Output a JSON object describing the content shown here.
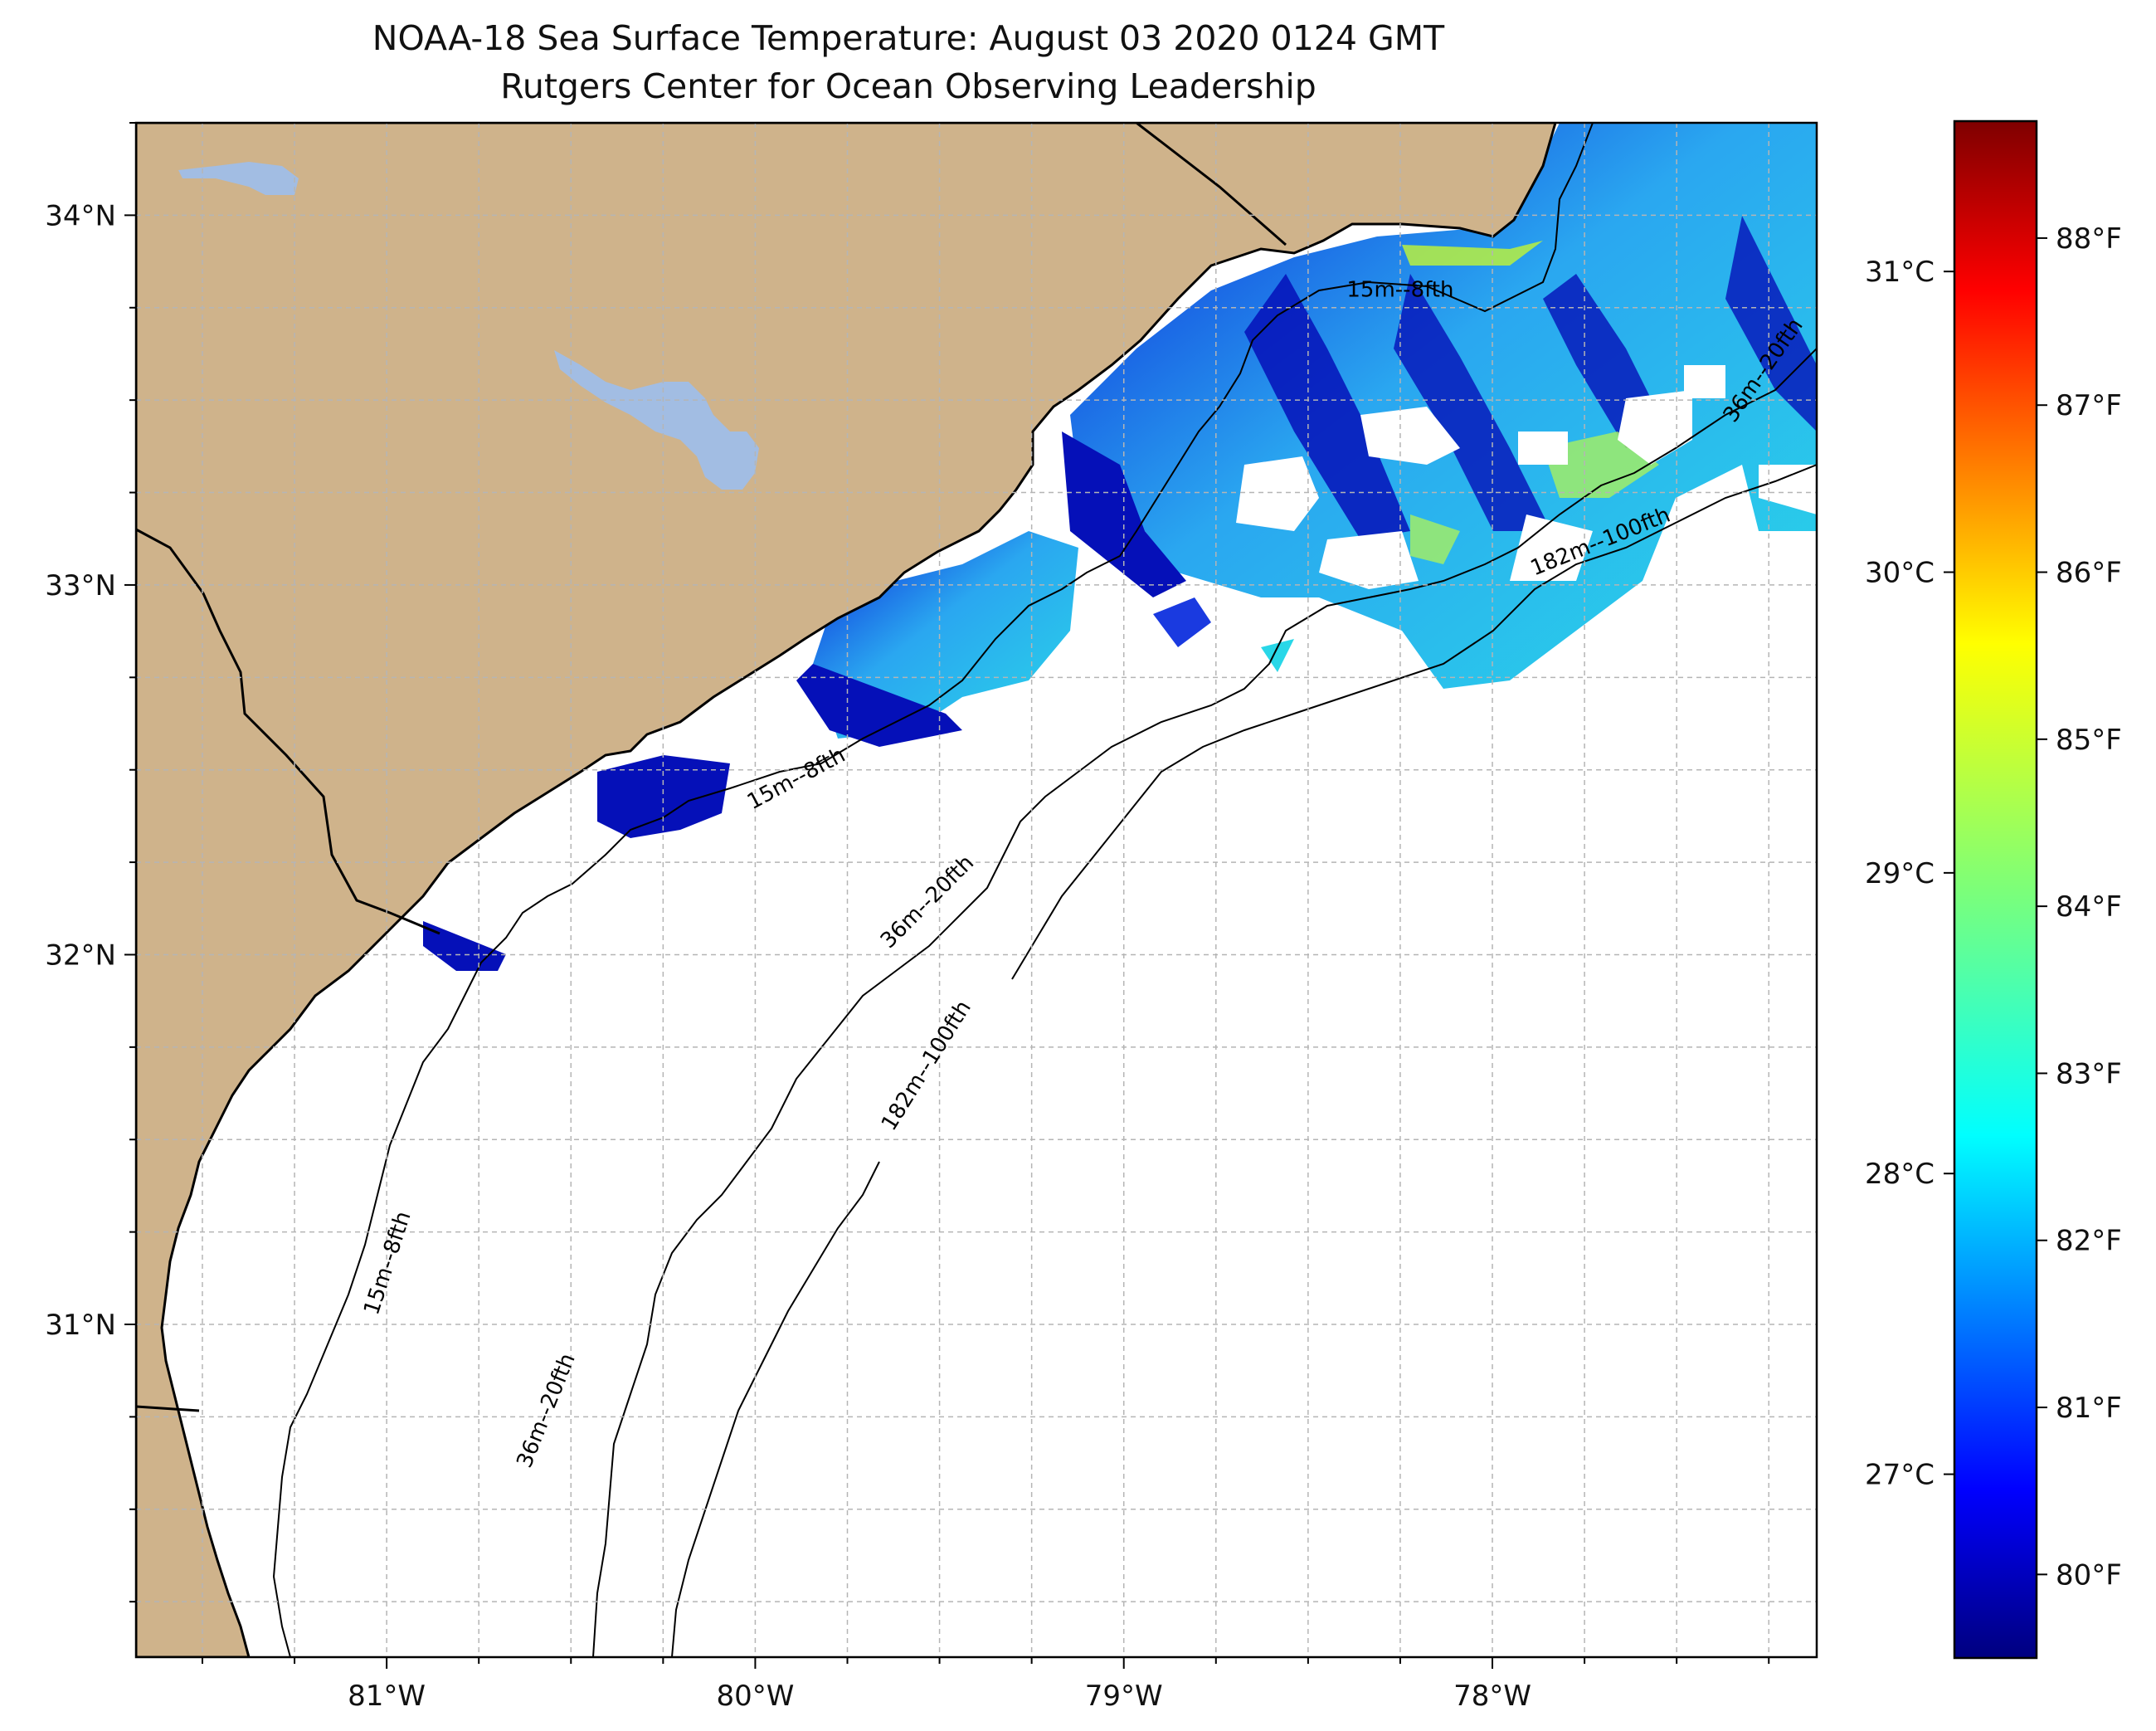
{
  "title": {
    "line1": "NOAA-18 Sea Surface Temperature: August 03 2020 0124 GMT",
    "line2": "Rutgers Center for Ocean Observing Leadership"
  },
  "map": {
    "lon_range": [
      -81.68,
      -77.12
    ],
    "lat_range": [
      30.1,
      34.25
    ],
    "gridlines": true,
    "land_color": "#cfb38b",
    "lake_color": "#a2bde3",
    "ocean_color": "#ffffff",
    "x_ticks": [
      {
        "value": -81,
        "label": "81°W"
      },
      {
        "value": -80,
        "label": "80°W"
      },
      {
        "value": -79,
        "label": "79°W"
      },
      {
        "value": -78,
        "label": "78°W"
      }
    ],
    "y_ticks": [
      {
        "value": 34,
        "label": "34°N"
      },
      {
        "value": 33,
        "label": "33°N"
      },
      {
        "value": 32,
        "label": "32°N"
      },
      {
        "value": 31,
        "label": "31°N"
      }
    ],
    "contour_labels": [
      {
        "text": "15m--8fth",
        "lon": -78.25,
        "lat": 33.78,
        "angle": 0
      },
      {
        "text": "15m--8fth",
        "lon": -79.88,
        "lat": 32.46,
        "angle": -28
      },
      {
        "text": "15m--8fth",
        "lon": -80.98,
        "lat": 31.16,
        "angle": -72
      },
      {
        "text": "36m--20fth",
        "lon": -79.52,
        "lat": 32.13,
        "angle": -45
      },
      {
        "text": "36m--20fth",
        "lon": -80.55,
        "lat": 30.76,
        "angle": -68
      },
      {
        "text": "36m--20fth",
        "lon": -77.25,
        "lat": 33.57,
        "angle": -55
      },
      {
        "text": "182m--100fth",
        "lon": -79.52,
        "lat": 31.69,
        "angle": -58
      },
      {
        "text": "182m--100fth",
        "lon": -77.7,
        "lat": 33.1,
        "angle": -22
      }
    ]
  },
  "colorbar": {
    "colormap": "jet",
    "celsius_ticks": [
      {
        "value": 31,
        "label": "31°C"
      },
      {
        "value": 30,
        "label": "30°C"
      },
      {
        "value": 29,
        "label": "29°C"
      },
      {
        "value": 28,
        "label": "28°C"
      },
      {
        "value": 27,
        "label": "27°C"
      }
    ],
    "fahrenheit_ticks": [
      {
        "value": 88,
        "label": "88°F"
      },
      {
        "value": 87,
        "label": "87°F"
      },
      {
        "value": 86,
        "label": "86°F"
      },
      {
        "value": 85,
        "label": "85°F"
      },
      {
        "value": 84,
        "label": "84°F"
      },
      {
        "value": 83,
        "label": "83°F"
      },
      {
        "value": 82,
        "label": "82°F"
      },
      {
        "value": 81,
        "label": "81°F"
      },
      {
        "value": 80,
        "label": "80°F"
      }
    ],
    "range_f": [
      79.5,
      88.7
    ]
  }
}
